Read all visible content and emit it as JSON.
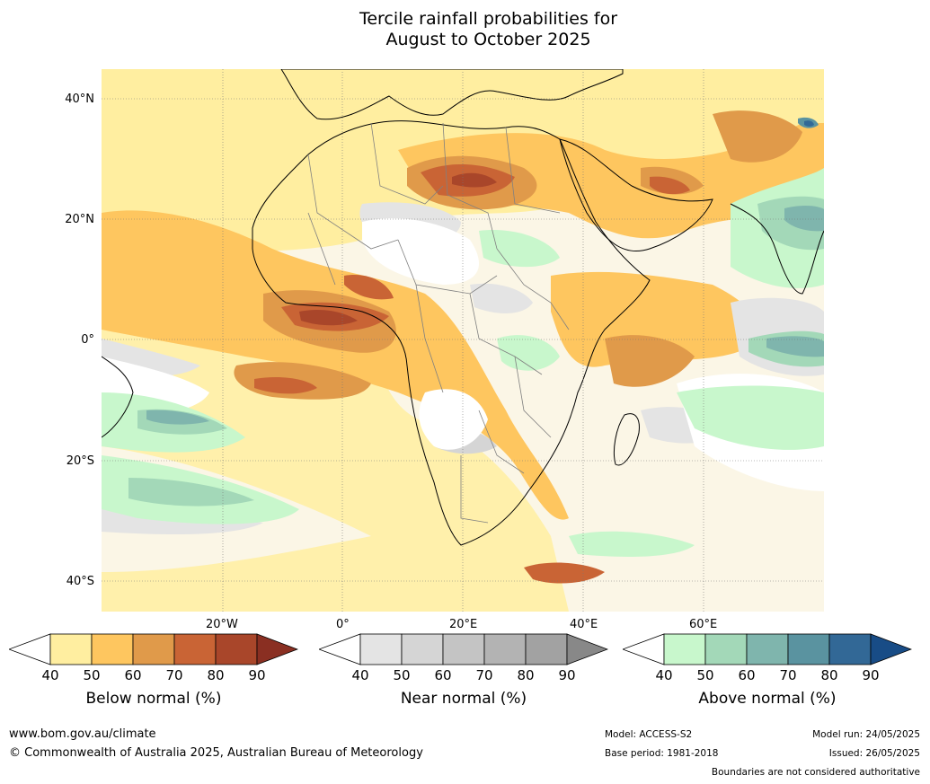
{
  "title_line1": "Tercile rainfall probabilities for",
  "title_line2": "August to October 2025",
  "map": {
    "lat_labels": [
      "40°N",
      "20°N",
      "0°",
      "20°S",
      "40°S"
    ],
    "lon_labels": [
      "20°W",
      "0°",
      "20°E",
      "40°E",
      "60°E"
    ]
  },
  "legends": [
    {
      "label": "Below normal (%)",
      "ticks": [
        "40",
        "50",
        "60",
        "70",
        "80",
        "90"
      ],
      "colors": [
        "#ffeea0",
        "#fec65f",
        "#e09a4a",
        "#c96435",
        "#a9462a",
        "#8a2f22"
      ]
    },
    {
      "label": "Near normal (%)",
      "ticks": [
        "40",
        "50",
        "60",
        "70",
        "80",
        "90"
      ],
      "colors": [
        "#e4e4e4",
        "#d5d5d5",
        "#c4c4c4",
        "#b3b3b3",
        "#a2a2a2",
        "#888888"
      ]
    },
    {
      "label": "Above normal (%)",
      "ticks": [
        "40",
        "50",
        "60",
        "70",
        "80",
        "90"
      ],
      "colors": [
        "#c8f7cc",
        "#a3d8b8",
        "#7fb5ad",
        "#5a93a0",
        "#326896",
        "#184c86"
      ]
    }
  ],
  "footer": {
    "url": "www.bom.gov.au/climate",
    "copyright": "© Commonwealth of Australia 2025, Australian Bureau of Meteorology",
    "model": "Model: ACCESS-S2",
    "base_period": "Base period: 1981-2018",
    "model_run": "Model run: 24/05/2025",
    "issued": "Issued: 26/05/2025",
    "disclaimer": "Boundaries are not considered authoritative"
  }
}
